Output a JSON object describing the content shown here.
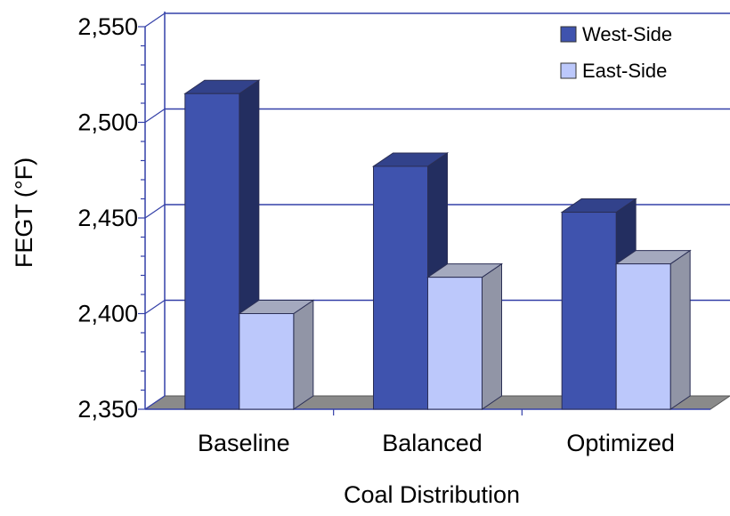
{
  "chart_data": {
    "type": "bar",
    "style": "3d-clustered-column",
    "title": "",
    "xlabel": "Coal Distribution",
    "ylabel": "FEGT (°F)",
    "ylim": [
      2350,
      2550
    ],
    "yticks": [
      2350,
      2400,
      2450,
      2500,
      2550
    ],
    "ytick_labels": [
      "2,350",
      "2,400",
      "2,450",
      "2,500",
      "2,550"
    ],
    "categories": [
      "Baseline",
      "Balanced",
      "Optimized"
    ],
    "series": [
      {
        "name": "West-Side",
        "values": [
          2515,
          2477,
          2453
        ],
        "color": "#3F53AE"
      },
      {
        "name": "East-Side",
        "values": [
          2400,
          2419,
          2426
        ],
        "color": "#BCC8FB"
      }
    ],
    "grid": true,
    "legend_position": "top-right",
    "axis_color": "#3440A8",
    "floor_color": "#8A8A8A"
  }
}
